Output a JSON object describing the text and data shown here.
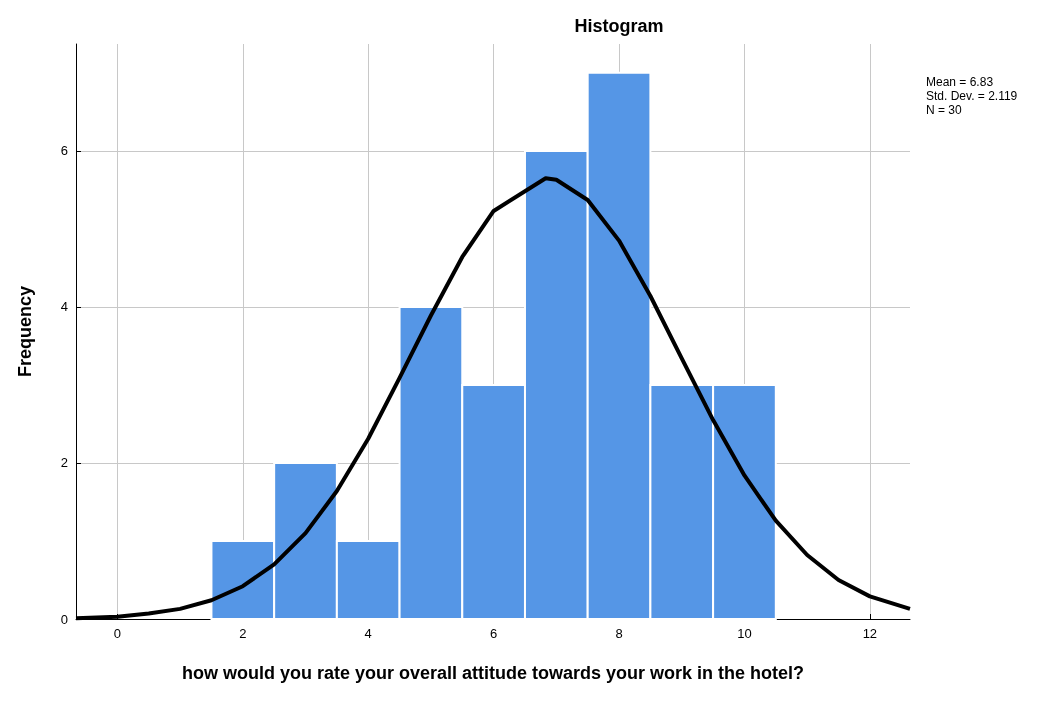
{
  "chart_data": {
    "type": "histogram",
    "title": "Histogram",
    "xlabel": "how would you rate your overall attitude towards your work in the hotel?",
    "ylabel": "Frequency",
    "bins": [
      1.5,
      2.5,
      3.5,
      4.5,
      5.5,
      6.5,
      7.5,
      8.5,
      9.5,
      10.5
    ],
    "values": [
      1,
      2,
      1,
      4,
      3,
      6,
      7,
      3,
      3
    ],
    "color": "#5596e6",
    "series": [
      {
        "type": "line",
        "color": "#000000",
        "x": [
          -0.66,
          0,
          0.5,
          1,
          1.5,
          2,
          2.5,
          3,
          3.5,
          4,
          4.5,
          5,
          5.5,
          6,
          6.83,
          7,
          7.5,
          8,
          8.5,
          9,
          9.5,
          10,
          10.5,
          11,
          11.5,
          12,
          12.64
        ],
        "values": [
          0.01,
          0.03,
          0.07,
          0.13,
          0.24,
          0.42,
          0.7,
          1.1,
          1.64,
          2.31,
          3.09,
          3.89,
          4.64,
          5.23,
          5.65,
          5.63,
          5.37,
          4.85,
          4.14,
          3.34,
          2.55,
          1.84,
          1.26,
          0.82,
          0.5,
          0.29,
          0.13
        ]
      }
    ],
    "marker": "none",
    "line_style": "solid",
    "xlim": [
      -0.66,
      12.64
    ],
    "xticks": [
      0,
      2,
      4,
      6,
      8,
      10,
      12
    ],
    "ylim": [
      0,
      7.37
    ],
    "yticks": [
      0,
      2,
      4,
      6
    ],
    "grid": true,
    "annotations": [
      "Mean = 6.83",
      "Std. Dev. = 2.119",
      "N = 30"
    ]
  }
}
